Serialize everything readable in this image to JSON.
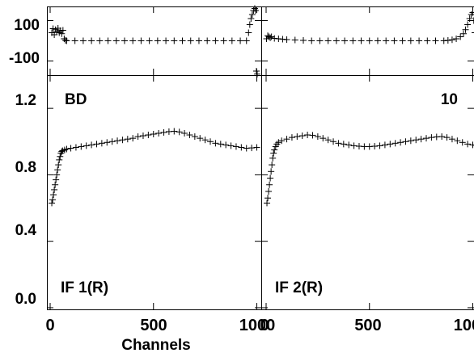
{
  "chart_data": {
    "type": "scatter",
    "xlabel": "Channels",
    "x_ticks": [
      "0",
      "500",
      "1000"
    ],
    "panels": [
      {
        "row": "phase",
        "column": 1,
        "ylim": [
          -170,
          170
        ],
        "y_ticks": [
          "100",
          "-100"
        ],
        "annotations": [],
        "points": [
          [
            8,
            40
          ],
          [
            14,
            60
          ],
          [
            20,
            30
          ],
          [
            26,
            55
          ],
          [
            32,
            45
          ],
          [
            38,
            62
          ],
          [
            44,
            40
          ],
          [
            50,
            50
          ],
          [
            56,
            35
          ],
          [
            62,
            52
          ],
          [
            68,
            10
          ],
          [
            74,
            2
          ],
          [
            80,
            0
          ],
          [
            120,
            0
          ],
          [
            160,
            0
          ],
          [
            200,
            0
          ],
          [
            240,
            0
          ],
          [
            280,
            0
          ],
          [
            320,
            0
          ],
          [
            360,
            0
          ],
          [
            400,
            0
          ],
          [
            440,
            0
          ],
          [
            480,
            0
          ],
          [
            520,
            0
          ],
          [
            560,
            0
          ],
          [
            600,
            0
          ],
          [
            640,
            0
          ],
          [
            680,
            0
          ],
          [
            720,
            0
          ],
          [
            760,
            0
          ],
          [
            800,
            0
          ],
          [
            840,
            0
          ],
          [
            880,
            0
          ],
          [
            920,
            0
          ],
          [
            950,
            0
          ],
          [
            960,
            40
          ],
          [
            966,
            80
          ],
          [
            972,
            110
          ],
          [
            978,
            130
          ],
          [
            984,
            150
          ],
          [
            990,
            160
          ],
          [
            994,
            150
          ],
          [
            998,
            -150
          ],
          [
            1002,
            -165
          ]
        ]
      },
      {
        "row": "phase",
        "column": 2,
        "ylim": [
          -170,
          170
        ],
        "y_ticks": [
          "100",
          "-100"
        ],
        "annotations": [],
        "points": [
          [
            2,
            10
          ],
          [
            8,
            25
          ],
          [
            14,
            20
          ],
          [
            20,
            15
          ],
          [
            26,
            20
          ],
          [
            40,
            12
          ],
          [
            60,
            10
          ],
          [
            80,
            8
          ],
          [
            100,
            6
          ],
          [
            140,
            4
          ],
          [
            180,
            2
          ],
          [
            220,
            0
          ],
          [
            260,
            0
          ],
          [
            300,
            0
          ],
          [
            340,
            0
          ],
          [
            380,
            0
          ],
          [
            420,
            0
          ],
          [
            460,
            0
          ],
          [
            500,
            0
          ],
          [
            540,
            0
          ],
          [
            580,
            0
          ],
          [
            620,
            0
          ],
          [
            660,
            0
          ],
          [
            700,
            0
          ],
          [
            740,
            0
          ],
          [
            780,
            0
          ],
          [
            820,
            0
          ],
          [
            860,
            0
          ],
          [
            880,
            2
          ],
          [
            900,
            5
          ],
          [
            920,
            10
          ],
          [
            940,
            20
          ],
          [
            955,
            35
          ],
          [
            965,
            55
          ],
          [
            975,
            80
          ],
          [
            985,
            110
          ],
          [
            993,
            130
          ],
          [
            1000,
            140
          ],
          [
            1005,
            100
          ],
          [
            1010,
            40
          ]
        ]
      },
      {
        "row": "amplitude",
        "column": 1,
        "ylim": [
          -0.01,
          1.4
        ],
        "y_ticks": [
          "1.2",
          "0.8",
          "0.4",
          "0.0"
        ],
        "annotations": [
          "BD",
          "IF 1(R)"
        ],
        "points": [
          [
            8,
            0.63
          ],
          [
            12,
            0.65
          ],
          [
            16,
            0.68
          ],
          [
            20,
            0.71
          ],
          [
            24,
            0.74
          ],
          [
            28,
            0.77
          ],
          [
            32,
            0.8
          ],
          [
            36,
            0.83
          ],
          [
            40,
            0.86
          ],
          [
            44,
            0.89
          ],
          [
            48,
            0.91
          ],
          [
            52,
            0.93
          ],
          [
            56,
            0.94
          ],
          [
            60,
            0.945
          ],
          [
            70,
            0.95
          ],
          [
            80,
            0.955
          ],
          [
            100,
            0.96
          ],
          [
            125,
            0.965
          ],
          [
            150,
            0.97
          ],
          [
            175,
            0.975
          ],
          [
            200,
            0.98
          ],
          [
            225,
            0.985
          ],
          [
            250,
            0.99
          ],
          [
            275,
            0.995
          ],
          [
            300,
            1.0
          ],
          [
            325,
            1.005
          ],
          [
            350,
            1.01
          ],
          [
            375,
            1.015
          ],
          [
            400,
            1.02
          ],
          [
            425,
            1.03
          ],
          [
            450,
            1.035
          ],
          [
            475,
            1.04
          ],
          [
            500,
            1.045
          ],
          [
            525,
            1.05
          ],
          [
            550,
            1.055
          ],
          [
            575,
            1.06
          ],
          [
            600,
            1.062
          ],
          [
            625,
            1.058
          ],
          [
            650,
            1.05
          ],
          [
            675,
            1.04
          ],
          [
            700,
            1.03
          ],
          [
            725,
            1.02
          ],
          [
            750,
            1.01
          ],
          [
            775,
            1.0
          ],
          [
            800,
            0.99
          ],
          [
            825,
            0.985
          ],
          [
            850,
            0.98
          ],
          [
            875,
            0.975
          ],
          [
            900,
            0.97
          ],
          [
            925,
            0.965
          ],
          [
            950,
            0.96
          ],
          [
            975,
            0.962
          ],
          [
            1000,
            0.965
          ]
        ]
      },
      {
        "row": "amplitude",
        "column": 2,
        "ylim": [
          -0.01,
          1.4
        ],
        "y_ticks": [
          "1.2",
          "0.8",
          "0.4",
          "0.0"
        ],
        "annotations": [
          "10",
          "IF 2(R)"
        ],
        "points": [
          [
            4,
            0.63
          ],
          [
            8,
            0.66
          ],
          [
            12,
            0.7
          ],
          [
            16,
            0.74
          ],
          [
            20,
            0.78
          ],
          [
            24,
            0.82
          ],
          [
            28,
            0.86
          ],
          [
            32,
            0.9
          ],
          [
            36,
            0.93
          ],
          [
            40,
            0.95
          ],
          [
            46,
            0.97
          ],
          [
            52,
            0.985
          ],
          [
            60,
            0.995
          ],
          [
            75,
            1.005
          ],
          [
            100,
            1.015
          ],
          [
            125,
            1.025
          ],
          [
            150,
            1.03
          ],
          [
            175,
            1.035
          ],
          [
            200,
            1.04
          ],
          [
            225,
            1.038
          ],
          [
            250,
            1.03
          ],
          [
            275,
            1.02
          ],
          [
            300,
            1.01
          ],
          [
            325,
            1.0
          ],
          [
            350,
            0.99
          ],
          [
            375,
            0.985
          ],
          [
            400,
            0.98
          ],
          [
            425,
            0.975
          ],
          [
            450,
            0.972
          ],
          [
            475,
            0.97
          ],
          [
            500,
            0.97
          ],
          [
            525,
            0.972
          ],
          [
            550,
            0.975
          ],
          [
            575,
            0.98
          ],
          [
            600,
            0.985
          ],
          [
            625,
            0.99
          ],
          [
            650,
            0.995
          ],
          [
            675,
            1.0
          ],
          [
            700,
            1.005
          ],
          [
            725,
            1.01
          ],
          [
            750,
            1.015
          ],
          [
            775,
            1.02
          ],
          [
            800,
            1.025
          ],
          [
            825,
            1.028
          ],
          [
            850,
            1.03
          ],
          [
            875,
            1.025
          ],
          [
            900,
            1.015
          ],
          [
            925,
            1.005
          ],
          [
            950,
            0.995
          ],
          [
            975,
            0.985
          ],
          [
            1000,
            0.98
          ],
          [
            1020,
            0.975
          ]
        ]
      }
    ]
  }
}
